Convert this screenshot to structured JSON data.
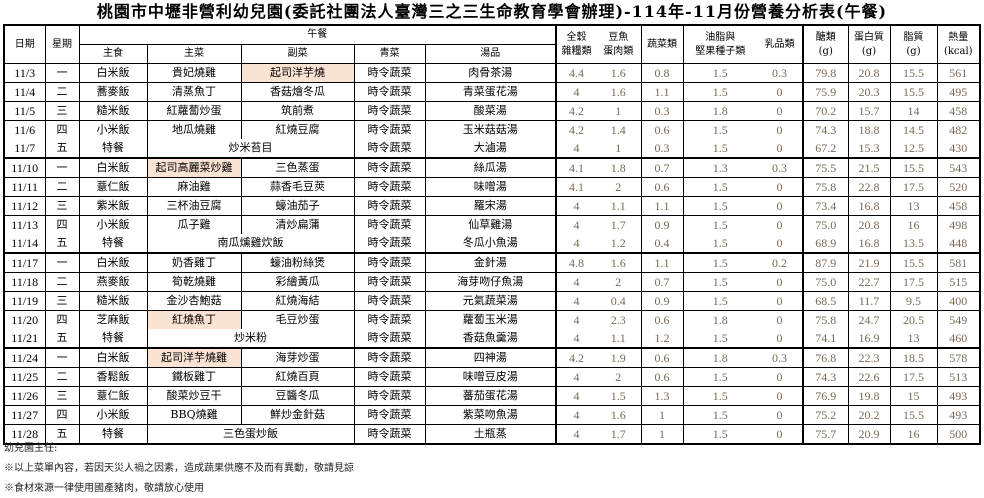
{
  "title": "桃園市中壢非營利幼兒園(委託社團法人臺灣三之三生命教育學會辦理)-114年-11月份營養分析表(午餐)",
  "header": {
    "date": "日期",
    "weekday": "星期",
    "lunch": "午餐",
    "staple": "主食",
    "main": "主菜",
    "side": "副菜",
    "veg": "青菜",
    "soup": "湯品",
    "grains": [
      "全穀",
      "雜糧類"
    ],
    "protein": [
      "豆魚",
      "蛋肉類"
    ],
    "veg_servings": "蔬菜類",
    "fat_nuts": [
      "油脂與",
      "堅果種子類"
    ],
    "dairy": "乳品類",
    "carb": [
      "醣類",
      "(g)"
    ],
    "protein_g": [
      "蛋白質",
      "(g)"
    ],
    "fat_g": [
      "脂質",
      "(g)"
    ],
    "kcal": [
      "熱量",
      "(kcal)"
    ]
  },
  "highlight_color": "#fbe3d3",
  "weeks": [
    {
      "rows": [
        {
          "date": "11/3",
          "weekday": "一",
          "staple": "白米飯",
          "main": "貴妃燒雞",
          "side": "起司洋芋燒",
          "veg": "時令蔬菜",
          "soup": "肉骨茶湯",
          "highlight": "side",
          "grains": "4.4",
          "protein": "1.6",
          "veg_servings": "0.8",
          "fat_nuts": "1.5",
          "dairy": "0.3",
          "carb": "79.8",
          "protein_g": "20.8",
          "fat_g": "15.5",
          "kcal": "561"
        },
        {
          "date": "11/4",
          "weekday": "二",
          "staple": "蕎麥飯",
          "main": "清蒸魚丁",
          "side": "香菇燴冬瓜",
          "veg": "時令蔬菜",
          "soup": "青菜蛋花湯",
          "grains": "4",
          "protein": "1.6",
          "veg_servings": "1.1",
          "fat_nuts": "1.5",
          "dairy": "0",
          "carb": "75.9",
          "protein_g": "20.3",
          "fat_g": "15.5",
          "kcal": "495"
        },
        {
          "date": "11/5",
          "weekday": "三",
          "staple": "糙米飯",
          "main": "紅蘿蔔炒蛋",
          "side": "筑前煮",
          "veg": "時令蔬菜",
          "soup": "酸菜湯",
          "grains": "4.2",
          "protein": "1",
          "veg_servings": "0.3",
          "fat_nuts": "1.8",
          "dairy": "0",
          "carb": "70.2",
          "protein_g": "15.7",
          "fat_g": "14",
          "kcal": "458"
        },
        {
          "date": "11/6",
          "weekday": "四",
          "staple": "小米飯",
          "main": "地瓜燒雞",
          "side": "紅燒豆腐",
          "veg": "時令蔬菜",
          "soup": "玉米菇菇湯",
          "grains": "4.2",
          "protein": "1.4",
          "veg_servings": "0.6",
          "fat_nuts": "1.5",
          "dairy": "0",
          "carb": "74.3",
          "protein_g": "18.8",
          "fat_g": "14.5",
          "kcal": "482"
        },
        {
          "date": "11/7",
          "weekday": "五",
          "staple": "特餐",
          "main": "炒米苔目",
          "veg": "時令蔬菜",
          "soup": "大滷湯",
          "grains": "4",
          "protein": "1",
          "veg_servings": "0.3",
          "fat_nuts": "1.5",
          "dairy": "0",
          "carb": "67.2",
          "protein_g": "15.3",
          "fat_g": "12.5",
          "kcal": "430"
        }
      ]
    },
    {
      "rows": [
        {
          "date": "11/10",
          "weekday": "一",
          "staple": "白米飯",
          "main": "起司高麗菜炒雞",
          "side": "三色蒸蛋",
          "veg": "時令蔬菜",
          "soup": "絲瓜湯",
          "highlight": "main",
          "grains": "4.1",
          "protein": "1.8",
          "veg_servings": "0.7",
          "fat_nuts": "1.3",
          "dairy": "0.3",
          "carb": "75.5",
          "protein_g": "21.5",
          "fat_g": "15.5",
          "kcal": "543"
        },
        {
          "date": "11/11",
          "weekday": "二",
          "staple": "薏仁飯",
          "main": "麻油雞",
          "side": "蒜香毛豆莢",
          "veg": "時令蔬菜",
          "soup": "味噌湯",
          "grains": "4.1",
          "protein": "2",
          "veg_servings": "0.6",
          "fat_nuts": "1.5",
          "dairy": "0",
          "carb": "75.8",
          "protein_g": "22.8",
          "fat_g": "17.5",
          "kcal": "520"
        },
        {
          "date": "11/12",
          "weekday": "三",
          "staple": "紫米飯",
          "main": "三杯油豆腐",
          "side": "蠔油茄子",
          "veg": "時令蔬菜",
          "soup": "羅宋湯",
          "grains": "4",
          "protein": "1.1",
          "veg_servings": "1.1",
          "fat_nuts": "1.5",
          "dairy": "0",
          "carb": "73.4",
          "protein_g": "16.8",
          "fat_g": "13",
          "kcal": "458"
        },
        {
          "date": "11/13",
          "weekday": "四",
          "staple": "小米飯",
          "main": "瓜子雞",
          "side": "清炒扁蒲",
          "veg": "時令蔬菜",
          "soup": "仙草雞湯",
          "grains": "4",
          "protein": "1.7",
          "veg_servings": "0.9",
          "fat_nuts": "1.5",
          "dairy": "0",
          "carb": "75.0",
          "protein_g": "20.8",
          "fat_g": "16",
          "kcal": "498"
        },
        {
          "date": "11/14",
          "weekday": "五",
          "staple": "特餐",
          "main": "南瓜燻雞炊飯",
          "veg": "時令蔬菜",
          "soup": "冬瓜小魚湯",
          "grains": "4",
          "protein": "1.2",
          "veg_servings": "0.4",
          "fat_nuts": "1.5",
          "dairy": "0",
          "carb": "68.9",
          "protein_g": "16.8",
          "fat_g": "13.5",
          "kcal": "448"
        }
      ]
    },
    {
      "rows": [
        {
          "date": "11/17",
          "weekday": "一",
          "staple": "白米飯",
          "main": "奶香雞丁",
          "side": "蠔油粉絲煲",
          "veg": "時令蔬菜",
          "soup": "金針湯",
          "grains": "4.8",
          "protein": "1.6",
          "veg_servings": "1.1",
          "fat_nuts": "1.5",
          "dairy": "0.2",
          "carb": "87.9",
          "protein_g": "21.9",
          "fat_g": "15.5",
          "kcal": "581"
        },
        {
          "date": "11/18",
          "weekday": "二",
          "staple": "燕麥飯",
          "main": "筍乾燒雞",
          "side": "彩繪黃瓜",
          "veg": "時令蔬菜",
          "soup": "海芽吻仔魚湯",
          "grains": "4",
          "protein": "2",
          "veg_servings": "0.7",
          "fat_nuts": "1.5",
          "dairy": "0",
          "carb": "75.0",
          "protein_g": "22.7",
          "fat_g": "17.5",
          "kcal": "515"
        },
        {
          "date": "11/19",
          "weekday": "三",
          "staple": "糙米飯",
          "main": "金沙杏鮑菇",
          "side": "紅燒海結",
          "veg": "時令蔬菜",
          "soup": "元氣蔬菜湯",
          "grains": "4",
          "protein": "0.4",
          "veg_servings": "0.9",
          "fat_nuts": "1.5",
          "dairy": "0",
          "carb": "68.5",
          "protein_g": "11.7",
          "fat_g": "9.5",
          "kcal": "400"
        },
        {
          "date": "11/20",
          "weekday": "四",
          "staple": "芝麻飯",
          "main": "紅燒魚丁",
          "side": "毛豆炒蛋",
          "veg": "時令蔬菜",
          "soup": "蘿蔔玉米湯",
          "highlight": "main",
          "grains": "4",
          "protein": "2.3",
          "veg_servings": "0.6",
          "fat_nuts": "1.8",
          "dairy": "0",
          "carb": "75.8",
          "protein_g": "24.7",
          "fat_g": "20.5",
          "kcal": "549"
        },
        {
          "date": "11/21",
          "weekday": "五",
          "staple": "特餐",
          "main": "炒米粉",
          "veg": "時令蔬菜",
          "soup": "香菇魚羹湯",
          "grains": "4",
          "protein": "1.1",
          "veg_servings": "1.2",
          "fat_nuts": "1.5",
          "dairy": "0",
          "carb": "74.1",
          "protein_g": "16.9",
          "fat_g": "13",
          "kcal": "460"
        }
      ]
    },
    {
      "rows": [
        {
          "date": "11/24",
          "weekday": "一",
          "staple": "白米飯",
          "main": "起司洋芋燒雞",
          "side": "海芽炒蛋",
          "veg": "時令蔬菜",
          "soup": "四神湯",
          "highlight": "main",
          "grains": "4.2",
          "protein": "1.9",
          "veg_servings": "0.6",
          "fat_nuts": "1.8",
          "dairy": "0.3",
          "carb": "76.8",
          "protein_g": "22.3",
          "fat_g": "18.5",
          "kcal": "578"
        },
        {
          "date": "11/25",
          "weekday": "二",
          "staple": "香鬆飯",
          "main": "鐵板雞丁",
          "side": "紅燒百頁",
          "veg": "時令蔬菜",
          "soup": "味噌豆皮湯",
          "grains": "4",
          "protein": "2",
          "veg_servings": "0.6",
          "fat_nuts": "1.5",
          "dairy": "0",
          "carb": "74.3",
          "protein_g": "22.6",
          "fat_g": "17.5",
          "kcal": "513"
        },
        {
          "date": "11/26",
          "weekday": "三",
          "staple": "薏仁飯",
          "main": "酸菜炒豆干",
          "side": "豆醬冬瓜",
          "veg": "時令蔬菜",
          "soup": "蕃茄蛋花湯",
          "grains": "4",
          "protein": "1.5",
          "veg_servings": "1.3",
          "fat_nuts": "1.5",
          "dairy": "0",
          "carb": "76.9",
          "protein_g": "19.8",
          "fat_g": "15",
          "kcal": "493"
        },
        {
          "date": "11/27",
          "weekday": "四",
          "staple": "小米飯",
          "main": "BBQ燒雞",
          "side": "鮮炒金針菇",
          "veg": "時令蔬菜",
          "soup": "紫菜吻魚湯",
          "grains": "4",
          "protein": "1.6",
          "veg_servings": "1",
          "fat_nuts": "1.5",
          "dairy": "0",
          "carb": "75.2",
          "protein_g": "20.2",
          "fat_g": "15.5",
          "kcal": "493"
        },
        {
          "date": "11/28",
          "weekday": "五",
          "staple": "特餐",
          "main": "三色蛋炒飯",
          "veg": "時令蔬菜",
          "soup": "土瓶蒸",
          "grains": "4",
          "protein": "1.7",
          "veg_servings": "1",
          "fat_nuts": "1.5",
          "dairy": "0",
          "carb": "75.7",
          "protein_g": "20.9",
          "fat_g": "16",
          "kcal": "500"
        }
      ]
    }
  ],
  "footer": {
    "director": "幼兒園主任:",
    "note1": "※以上菜單內容，若因天災人禍之因素，造成蔬果供應不及而有異動，敬請見諒",
    "note2": "※食材來源一律使用國產豬肉，敬請放心使用"
  }
}
